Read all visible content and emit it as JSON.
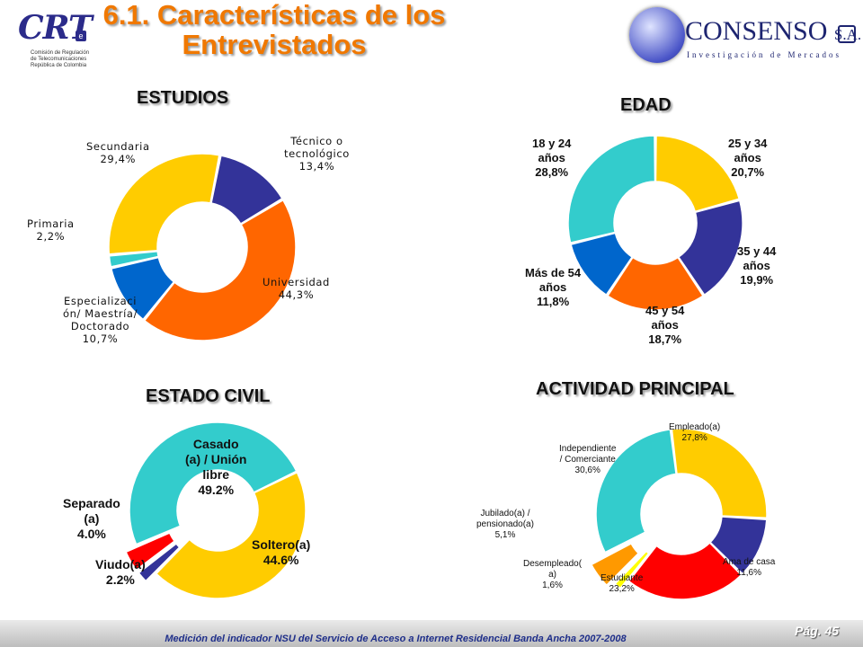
{
  "header": {
    "title_line1": "6.1. Características de los",
    "title_line2": "Entrevistados",
    "crt_logo": {
      "word": "CRT",
      "badge": "e",
      "lines": [
        "Comisión de Regulación",
        "de Telecomunicaciones",
        "República de Colombia"
      ]
    },
    "consenso_logo": {
      "name": "CONSENSO",
      "suffix": "S.A.",
      "tagline": "Investigación de Mercados"
    }
  },
  "footer": {
    "text": "Medición del indicador NSU del Servicio de Acceso a Internet Residencial Banda Ancha 2007-2008",
    "page": "Pág. 45"
  },
  "chart_data": [
    {
      "type": "pie",
      "donut": true,
      "title": "ESTUDIOS",
      "slices": [
        {
          "label": "Técnico o tecnológico",
          "value": 13.4,
          "value_label": "13,4%",
          "color": "#333399",
          "label_lines": [
            "Técnico o",
            "tecnológico",
            "13,4%"
          ]
        },
        {
          "label": "Universidad",
          "value": 44.3,
          "value_label": "44,3%",
          "color": "#ff6600",
          "label_lines": [
            "Universidad",
            "44,3%"
          ]
        },
        {
          "label": "Especialización/ Maestría/ Doctorado",
          "value": 10.7,
          "value_label": "10,7%",
          "color": "#0066cc",
          "label_lines": [
            "Especializaci",
            "ón/ Maestría/",
            "Doctorado",
            "10,7%"
          ]
        },
        {
          "label": "Primaria",
          "value": 2.2,
          "value_label": "2,2%",
          "color": "#33cccc",
          "label_lines": [
            "Primaria",
            "2,2%"
          ]
        },
        {
          "label": "Secundaria",
          "value": 29.4,
          "value_label": "29,4%",
          "color": "#ffcc00",
          "label_lines": [
            "Secundaria",
            "29,4%"
          ]
        }
      ]
    },
    {
      "type": "pie",
      "donut": true,
      "title": "EDAD",
      "slices": [
        {
          "label": "25 y 34 años",
          "value": 20.7,
          "value_label": "20,7%",
          "color": "#ffcc00",
          "label_lines": [
            "25 y 34",
            "años",
            "20,7%"
          ]
        },
        {
          "label": "35 y 44 años",
          "value": 19.9,
          "value_label": "19,9%",
          "color": "#333399",
          "label_lines": [
            "35 y 44",
            "años",
            "19,9%"
          ]
        },
        {
          "label": "45 y 54 años",
          "value": 18.7,
          "value_label": "18,7%",
          "color": "#ff6600",
          "label_lines": [
            "45 y 54",
            "años",
            "18,7%"
          ]
        },
        {
          "label": "Más de 54 años",
          "value": 11.8,
          "value_label": "11,8%",
          "color": "#0066cc",
          "label_lines": [
            "Más de 54",
            "años",
            "11,8%"
          ]
        },
        {
          "label": "18 y 24 años",
          "value": 28.8,
          "value_label": "28,8%",
          "color": "#33cccc",
          "label_lines": [
            "18 y 24",
            "años",
            "28,8%"
          ]
        }
      ]
    },
    {
      "type": "pie",
      "donut": true,
      "title": "ESTADO CIVIL",
      "slices": [
        {
          "label": "Soltero(a)",
          "value": 44.6,
          "value_label": "44.6%",
          "color": "#ffcc00",
          "label_lines": [
            "Soltero(a)",
            "44.6%"
          ]
        },
        {
          "label": "Viudo(a)",
          "value": 2.2,
          "value_label": "2.2%",
          "color": "#333399",
          "label_lines": [
            "Viudo(a)",
            "2.2%"
          ]
        },
        {
          "label": "Separado (a)",
          "value": 4.0,
          "value_label": "4.0%",
          "color": "#ff0000",
          "label_lines": [
            "Separado",
            "(a)",
            "4.0%"
          ]
        },
        {
          "label": "Casado (a) / Unión libre",
          "value": 49.2,
          "value_label": "49.2%",
          "color": "#33cccc",
          "label_lines": [
            "Casado",
            "(a) / Unión",
            "libre",
            "49.2%"
          ]
        }
      ]
    },
    {
      "type": "pie",
      "donut": true,
      "title": "ACTIVIDAD PRINCIPAL",
      "slices": [
        {
          "label": "Empleado(a)",
          "value": 27.8,
          "value_label": "27,8%",
          "color": "#ffcc00",
          "label_lines": [
            "Empleado(a)",
            "27,8%"
          ]
        },
        {
          "label": "Ama de casa",
          "value": 11.6,
          "value_label": "11,6%",
          "color": "#333399",
          "label_lines": [
            "Ama de casa",
            "11,6%"
          ]
        },
        {
          "label": "Estudiante",
          "value": 23.2,
          "value_label": "23,2%",
          "color": "#ff0000",
          "label_lines": [
            "Estudiante",
            "23,2%"
          ]
        },
        {
          "label": "Desempleado(a)",
          "value": 1.6,
          "value_label": "1,6%",
          "color": "#ffff00",
          "label_lines": [
            "Desempleado(",
            "a)",
            "1,6%"
          ]
        },
        {
          "label": "Jubilado(a) / pensionado(a)",
          "value": 5.1,
          "value_label": "5,1%",
          "color": "#ff9900",
          "label_lines": [
            "Jubilado(a) /",
            "pensionado(a)",
            "5,1%"
          ]
        },
        {
          "label": "Independiente / Comerciante",
          "value": 30.6,
          "value_label": "30,6%",
          "color": "#33cccc",
          "label_lines": [
            "Independiente",
            "/ Comerciante",
            "30,6%"
          ]
        }
      ]
    }
  ]
}
